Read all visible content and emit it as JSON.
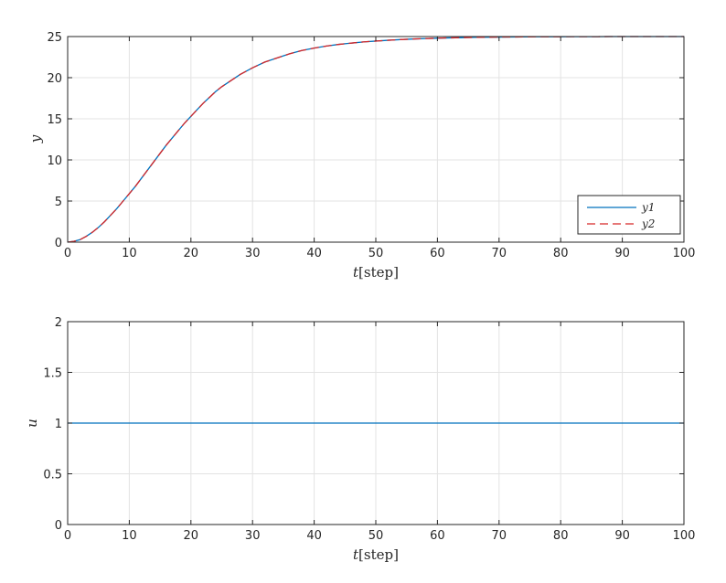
{
  "chart_data": [
    {
      "type": "line",
      "xlabel_var": "t",
      "xlabel_unit": "[step]",
      "ylabel": "y",
      "xlim": [
        0,
        100
      ],
      "ylim": [
        0,
        25
      ],
      "xticks": [
        "0",
        "10",
        "20",
        "30",
        "40",
        "50",
        "60",
        "70",
        "80",
        "90",
        "100"
      ],
      "yticks": [
        "0",
        "5",
        "10",
        "15",
        "20",
        "25"
      ],
      "grid": true,
      "legend_position": "bottom-right",
      "x": [
        0,
        1,
        2,
        3,
        4,
        5,
        6,
        7,
        8,
        9,
        10,
        11,
        12,
        13,
        14,
        15,
        16,
        17,
        18,
        19,
        20,
        21,
        22,
        23,
        24,
        25,
        26,
        27,
        28,
        29,
        30,
        32,
        34,
        36,
        38,
        40,
        42,
        44,
        46,
        48,
        50,
        52,
        54,
        56,
        58,
        60,
        62,
        64,
        66,
        68,
        70,
        72,
        74,
        76,
        78,
        80,
        82,
        84,
        86,
        88,
        90,
        92,
        94,
        96,
        98,
        100
      ],
      "series": [
        {
          "name": "y1",
          "color": "#0072BD",
          "style": "solid",
          "values": [
            0,
            0.1,
            0.3,
            0.7,
            1.2,
            1.8,
            2.5,
            3.3,
            4.1,
            5.0,
            5.9,
            6.8,
            7.8,
            8.8,
            9.8,
            10.8,
            11.8,
            12.7,
            13.6,
            14.5,
            15.3,
            16.1,
            16.9,
            17.6,
            18.3,
            18.9,
            19.4,
            19.9,
            20.4,
            20.8,
            21.2,
            21.9,
            22.4,
            22.9,
            23.3,
            23.6,
            23.85,
            24.05,
            24.2,
            24.35,
            24.45,
            24.55,
            24.63,
            24.7,
            24.75,
            24.8,
            24.84,
            24.87,
            24.9,
            24.92,
            24.94,
            24.95,
            24.96,
            24.97,
            24.98,
            24.98,
            24.99,
            24.99,
            24.99,
            25.0,
            25.0,
            25.0,
            25.0,
            25.0,
            25.0,
            25.0
          ]
        },
        {
          "name": "y2",
          "color": "#D62728",
          "style": "dashed",
          "values": [
            0,
            0.1,
            0.3,
            0.7,
            1.2,
            1.8,
            2.5,
            3.3,
            4.1,
            5.0,
            5.9,
            6.8,
            7.8,
            8.8,
            9.8,
            10.8,
            11.8,
            12.7,
            13.6,
            14.5,
            15.3,
            16.1,
            16.9,
            17.6,
            18.3,
            18.9,
            19.4,
            19.9,
            20.4,
            20.8,
            21.2,
            21.9,
            22.4,
            22.9,
            23.3,
            23.6,
            23.85,
            24.05,
            24.2,
            24.35,
            24.45,
            24.55,
            24.63,
            24.7,
            24.75,
            24.8,
            24.84,
            24.87,
            24.9,
            24.92,
            24.94,
            24.95,
            24.96,
            24.97,
            24.98,
            24.98,
            24.99,
            24.99,
            24.99,
            25.0,
            25.0,
            25.0,
            25.0,
            25.0,
            25.0,
            25.0
          ]
        }
      ]
    },
    {
      "type": "line",
      "xlabel_var": "t",
      "xlabel_unit": "[step]",
      "ylabel": "u",
      "xlim": [
        0,
        100
      ],
      "ylim": [
        0,
        2
      ],
      "xticks": [
        "0",
        "10",
        "20",
        "30",
        "40",
        "50",
        "60",
        "70",
        "80",
        "90",
        "100"
      ],
      "yticks": [
        "0",
        "0.5",
        "1",
        "1.5",
        "2"
      ],
      "grid": true,
      "x": [
        0,
        100
      ],
      "series": [
        {
          "color": "#0072BD",
          "style": "solid",
          "values": [
            1,
            1
          ]
        }
      ]
    }
  ]
}
